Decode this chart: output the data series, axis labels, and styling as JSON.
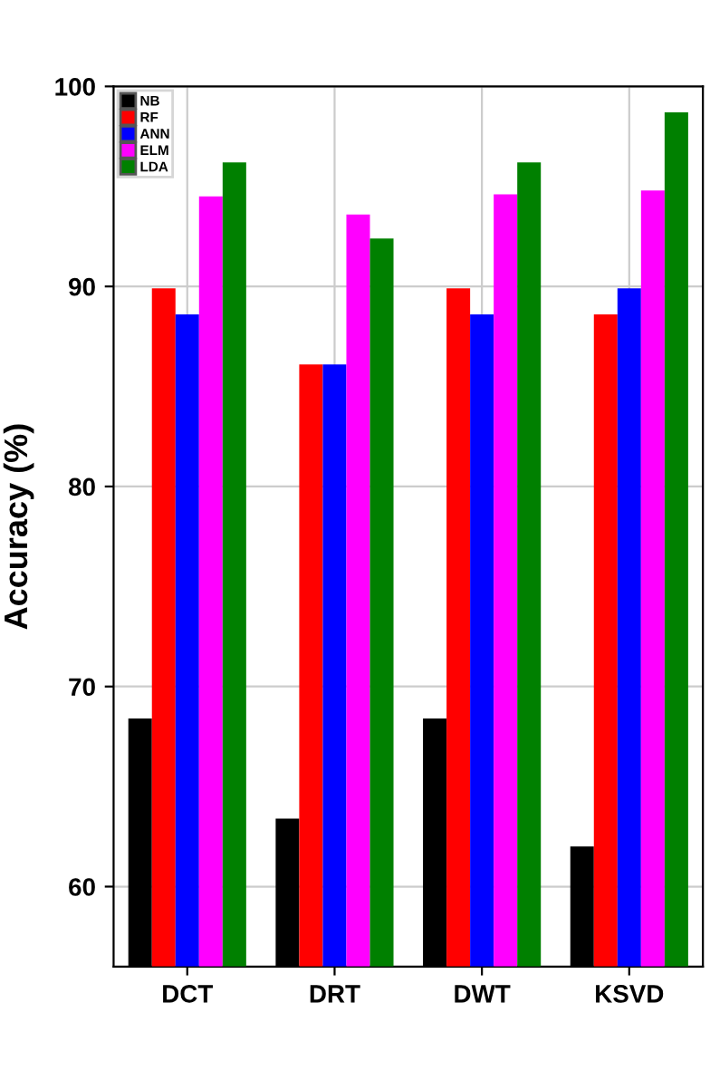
{
  "chart_data": {
    "type": "bar",
    "ylabel": "Accuracy (%)",
    "categories": [
      "DCT",
      "DRT",
      "DWT",
      "KSVD"
    ],
    "series": [
      {
        "name": "NB",
        "color": "#000000",
        "values": [
          68.4,
          63.4,
          68.4,
          62.0
        ]
      },
      {
        "name": "RF",
        "color": "#ff0000",
        "values": [
          89.9,
          86.1,
          89.9,
          88.6
        ]
      },
      {
        "name": "ANN",
        "color": "#0000ff",
        "values": [
          88.6,
          86.1,
          88.6,
          89.9
        ]
      },
      {
        "name": "ELM",
        "color": "#ff00ff",
        "values": [
          94.5,
          93.6,
          94.6,
          94.8
        ]
      },
      {
        "name": "LDA",
        "color": "#008000",
        "values": [
          96.2,
          92.4,
          96.2,
          98.7
        ]
      }
    ],
    "ylim": [
      56,
      100
    ],
    "yticks": [
      60,
      70,
      80,
      90,
      100
    ],
    "grid": true,
    "legend": "top left"
  }
}
